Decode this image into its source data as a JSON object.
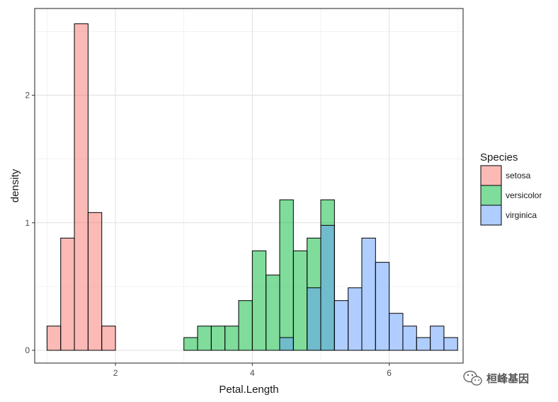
{
  "chart_data": {
    "type": "histogram",
    "xlabel": "Petal.Length",
    "ylabel": "density",
    "xlim": [
      0.82,
      7.08
    ],
    "ylim": [
      -0.1,
      2.68
    ],
    "x_ticks": [
      2,
      4,
      6
    ],
    "x_tick_labels": [
      "2",
      "4",
      "6"
    ],
    "y_ticks": [
      0,
      1,
      2
    ],
    "y_tick_labels": [
      "0",
      "1",
      "2"
    ],
    "bin_width": 0.2,
    "grid": true,
    "legend": {
      "title": "Species",
      "position": "right",
      "items": [
        "setosa",
        "versicolor",
        "virginica"
      ]
    },
    "series": [
      {
        "name": "setosa",
        "color": "#F8766D",
        "bins": [
          {
            "x0": 1.0,
            "x1": 1.2,
            "density": 0.19
          },
          {
            "x0": 1.2,
            "x1": 1.4,
            "density": 0.88
          },
          {
            "x0": 1.4,
            "x1": 1.6,
            "density": 2.56
          },
          {
            "x0": 1.6,
            "x1": 1.8,
            "density": 1.08
          },
          {
            "x0": 1.8,
            "x1": 2.0,
            "density": 0.19
          }
        ]
      },
      {
        "name": "versicolor",
        "color": "#00BA38",
        "bins": [
          {
            "x0": 2.0,
            "x1": 2.2,
            "density": 0.0
          },
          {
            "x0": 2.2,
            "x1": 2.4,
            "density": 0.0
          },
          {
            "x0": 2.4,
            "x1": 2.6,
            "density": 0.0
          },
          {
            "x0": 2.6,
            "x1": 2.8,
            "density": 0.0
          },
          {
            "x0": 2.8,
            "x1": 3.0,
            "density": 0.0
          },
          {
            "x0": 3.0,
            "x1": 3.2,
            "density": 0.1
          },
          {
            "x0": 3.2,
            "x1": 3.4,
            "density": 0.19
          },
          {
            "x0": 3.4,
            "x1": 3.6,
            "density": 0.19
          },
          {
            "x0": 3.6,
            "x1": 3.8,
            "density": 0.19
          },
          {
            "x0": 3.8,
            "x1": 4.0,
            "density": 0.39
          },
          {
            "x0": 4.0,
            "x1": 4.2,
            "density": 0.78
          },
          {
            "x0": 4.2,
            "x1": 4.4,
            "density": 0.59
          },
          {
            "x0": 4.4,
            "x1": 4.6,
            "density": 1.18
          },
          {
            "x0": 4.6,
            "x1": 4.8,
            "density": 0.78
          },
          {
            "x0": 4.8,
            "x1": 5.0,
            "density": 0.88
          },
          {
            "x0": 5.0,
            "x1": 5.2,
            "density": 1.18
          }
        ]
      },
      {
        "name": "virginica",
        "color": "#619CFF",
        "bins": [
          {
            "x0": 4.4,
            "x1": 4.6,
            "density": 0.1
          },
          {
            "x0": 4.8,
            "x1": 5.0,
            "density": 0.49
          },
          {
            "x0": 5.0,
            "x1": 5.2,
            "density": 0.98
          },
          {
            "x0": 5.2,
            "x1": 5.4,
            "density": 0.39
          },
          {
            "x0": 5.4,
            "x1": 5.6,
            "density": 0.49
          },
          {
            "x0": 5.6,
            "x1": 5.8,
            "density": 0.88
          },
          {
            "x0": 5.8,
            "x1": 6.0,
            "density": 0.69
          },
          {
            "x0": 6.0,
            "x1": 6.2,
            "density": 0.29
          },
          {
            "x0": 6.2,
            "x1": 6.4,
            "density": 0.19
          },
          {
            "x0": 6.4,
            "x1": 6.6,
            "density": 0.1
          },
          {
            "x0": 6.6,
            "x1": 6.8,
            "density": 0.19
          },
          {
            "x0": 6.8,
            "x1": 7.0,
            "density": 0.1
          }
        ]
      }
    ]
  },
  "watermark": {
    "text": "桓峰基因",
    "icon": "wechat-icon"
  }
}
